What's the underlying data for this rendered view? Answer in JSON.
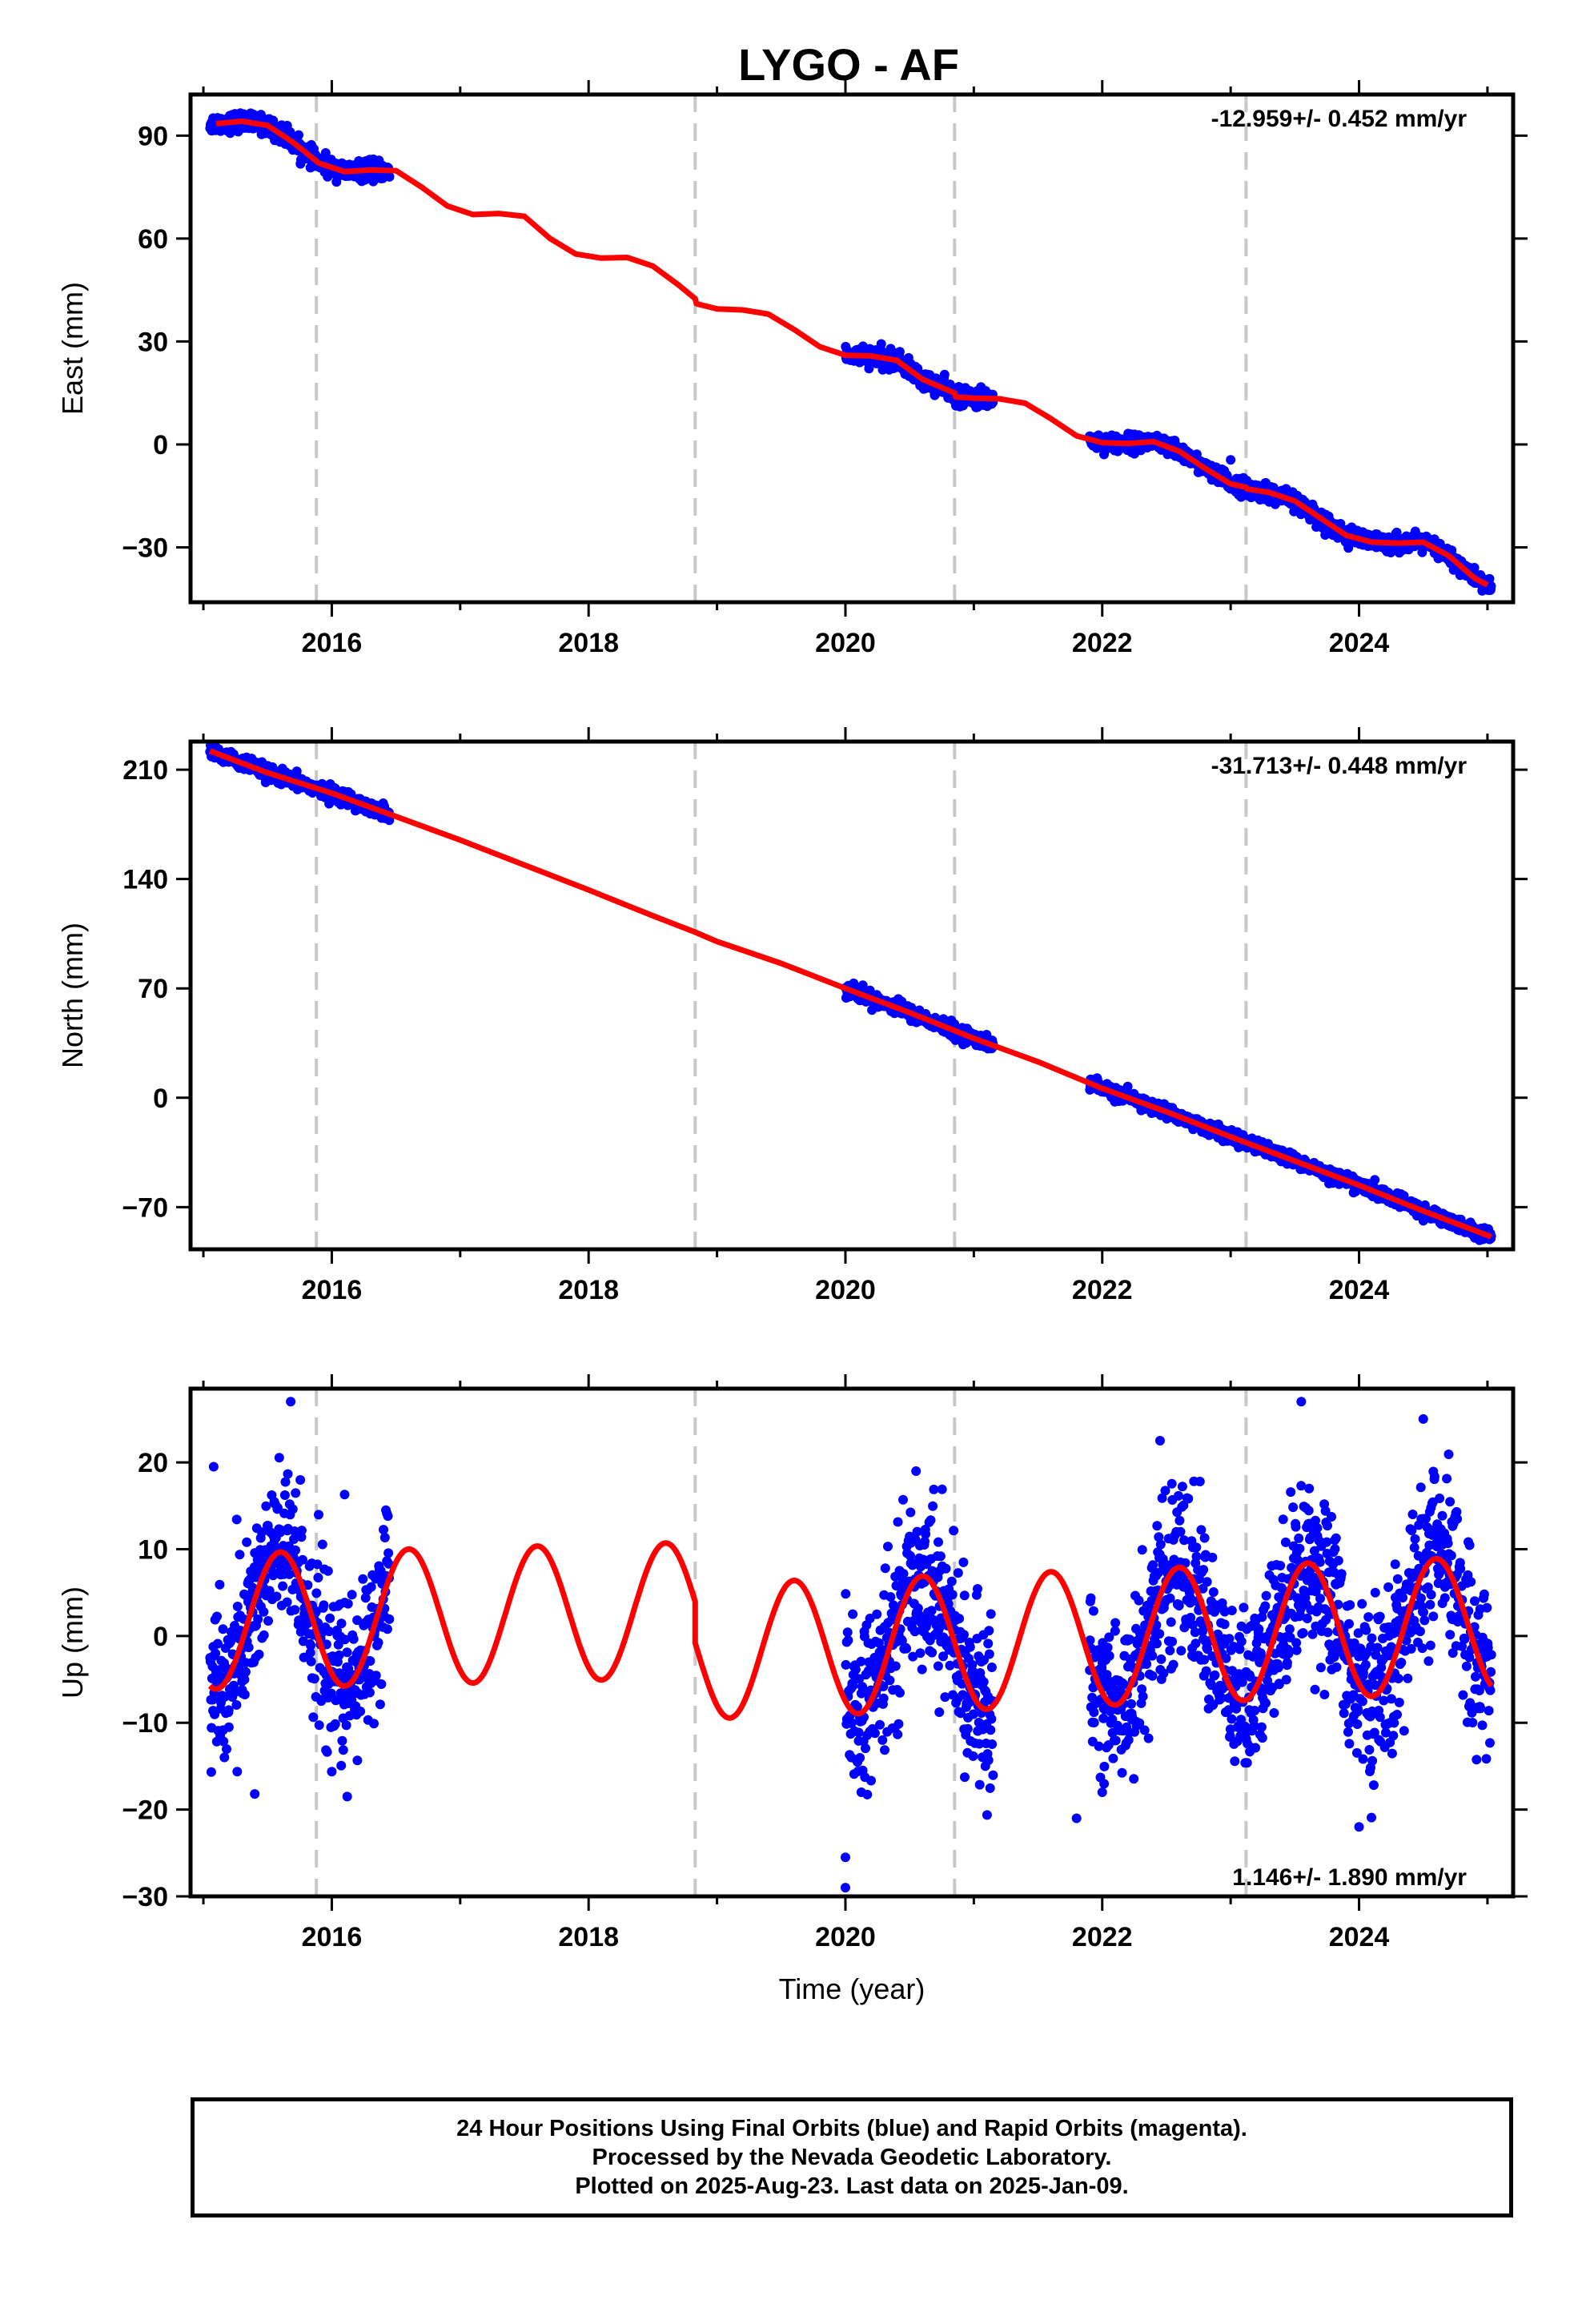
{
  "title": "LYGO - AF",
  "chart_data": [
    {
      "type": "scatter",
      "name": "east",
      "ylabel": "East (mm)",
      "xlabel": "",
      "rate_label": "-12.959+/- 0.452 mm/yr",
      "xlim": [
        2014.9,
        2025.2
      ],
      "ylim": [
        -46,
        102
      ],
      "xticks": [
        2016,
        2018,
        2020,
        2022,
        2024
      ],
      "yticks": [
        90,
        60,
        30,
        0,
        -30
      ],
      "yticklabels": [
        "90",
        "60",
        "30",
        "0",
        "−30"
      ],
      "xticklabels": [
        "2016",
        "2018",
        "2020",
        "2022",
        "2024"
      ],
      "steps": [
        2015.88,
        2018.83,
        2020.85,
        2023.12
      ],
      "fit_curve": {
        "x": [
          2015.1,
          2015.3,
          2015.5,
          2015.7,
          2015.9,
          2016.1,
          2016.3,
          2016.5,
          2016.7,
          2016.9,
          2017.1,
          2017.3,
          2017.5,
          2017.7,
          2017.9,
          2018.1,
          2018.3,
          2018.5,
          2018.7,
          2018.83,
          2018.84,
          2019.0,
          2019.2,
          2019.4,
          2019.6,
          2019.8,
          2020.0,
          2020.2,
          2020.4,
          2020.6,
          2020.85,
          2020.86,
          2021.0,
          2021.2,
          2021.4,
          2021.6,
          2021.8,
          2022.0,
          2022.2,
          2022.4,
          2022.6,
          2022.8,
          2023.0,
          2023.12,
          2023.13,
          2023.3,
          2023.5,
          2023.7,
          2023.9,
          2024.1,
          2024.3,
          2024.5,
          2024.7,
          2024.9,
          2025.0
        ],
        "y": [
          93.5,
          94.2,
          93.0,
          88.0,
          82.0,
          79.5,
          80.0,
          79.8,
          75.0,
          69.5,
          67.0,
          67.3,
          66.5,
          60.0,
          55.5,
          54.3,
          54.5,
          52.0,
          46.5,
          42.5,
          41.0,
          39.5,
          39.2,
          38.0,
          33.5,
          28.5,
          26.0,
          25.8,
          24.5,
          19.0,
          15.0,
          13.8,
          13.5,
          13.3,
          12.0,
          7.5,
          2.5,
          0.5,
          0.3,
          0.8,
          -2.0,
          -7.0,
          -11.5,
          -12.5,
          -13.0,
          -14.0,
          -16.5,
          -21.5,
          -26.5,
          -28.5,
          -28.8,
          -28.5,
          -32.5,
          -39.0,
          -41.0
        ]
      },
      "data_segments": [
        {
          "x0": 2015.05,
          "x1": 2016.45,
          "noise": 1.3
        },
        {
          "x0": 2020.0,
          "x1": 2021.15,
          "noise": 1.3
        },
        {
          "x0": 2021.9,
          "x1": 2025.03,
          "noise": 1.2
        }
      ],
      "outliers": [
        {
          "x": 2023.0,
          "y": -4.5
        }
      ]
    },
    {
      "type": "scatter",
      "name": "north",
      "ylabel": "North (mm)",
      "xlabel": "",
      "rate_label": "-31.713+/- 0.448 mm/yr",
      "xlim": [
        2014.9,
        2025.2
      ],
      "ylim": [
        -97,
        228
      ],
      "xticks": [
        2016,
        2018,
        2020,
        2022,
        2024
      ],
      "yticks": [
        210,
        140,
        70,
        0,
        -70
      ],
      "yticklabels": [
        "210",
        "140",
        "70",
        "0",
        "−70"
      ],
      "xticklabels": [
        "2016",
        "2018",
        "2020",
        "2022",
        "2024"
      ],
      "steps": [
        2015.88,
        2018.83,
        2020.85,
        2023.12
      ],
      "fit_curve": {
        "x": [
          2015.05,
          2015.5,
          2016.0,
          2016.5,
          2017.0,
          2017.5,
          2018.0,
          2018.5,
          2018.83,
          2019.0,
          2019.5,
          2020.0,
          2020.5,
          2021.0,
          2021.5,
          2022.0,
          2022.5,
          2023.0,
          2023.5,
          2024.0,
          2024.5,
          2025.03
        ],
        "y": [
          222.0,
          208.0,
          195.0,
          180.0,
          165.0,
          149.0,
          133.0,
          116.5,
          106.0,
          100.0,
          86.0,
          70.0,
          54.5,
          38.0,
          23.0,
          6.0,
          -9.0,
          -25.0,
          -40.5,
          -56.0,
          -72.5,
          -89.0
        ]
      },
      "data_segments": [
        {
          "x0": 2015.05,
          "x1": 2016.45,
          "noise": 2.2
        },
        {
          "x0": 2020.0,
          "x1": 2021.15,
          "noise": 2.2
        },
        {
          "x0": 2021.9,
          "x1": 2025.03,
          "noise": 2.0
        }
      ],
      "outliers": []
    },
    {
      "type": "scatter",
      "name": "up",
      "ylabel": "Up (mm)",
      "xlabel": "Time (year)",
      "rate_label": "1.146+/- 1.890 mm/yr",
      "xlim": [
        2014.9,
        2025.2
      ],
      "ylim": [
        -30,
        28.5
      ],
      "xticks": [
        2016,
        2018,
        2020,
        2022,
        2024
      ],
      "yticks": [
        20,
        10,
        0,
        -10,
        -20,
        -30
      ],
      "yticklabels": [
        "20",
        "10",
        "0",
        "−10",
        "−20",
        "−30"
      ],
      "xticklabels": [
        "2016",
        "2018",
        "2020",
        "2022",
        "2024"
      ],
      "steps": [
        2015.88,
        2018.83,
        2020.85,
        2023.12
      ],
      "fit_curve": {
        "model": "seasonal",
        "t0": 2015.6,
        "amplitude": 7.8,
        "segments": [
          {
            "x0": 2015.05,
            "x1": 2018.83,
            "offset": 3.4,
            "trend": 0.35
          },
          {
            "x0": 2018.83,
            "x1": 2025.03,
            "offset": -1.2,
            "trend": 0.5
          }
        ]
      },
      "data_segments": [
        {
          "x0": 2015.05,
          "x1": 2016.45,
          "noise": 4.8
        },
        {
          "x0": 2020.0,
          "x1": 2021.15,
          "noise": 4.8
        },
        {
          "x0": 2021.9,
          "x1": 2025.03,
          "noise": 4.8
        }
      ],
      "outliers": [
        {
          "x": 2015.08,
          "y": 19.5
        },
        {
          "x": 2015.4,
          "y": -18.2
        },
        {
          "x": 2015.68,
          "y": 27.0
        },
        {
          "x": 2016.1,
          "y": 16.3
        },
        {
          "x": 2016.12,
          "y": -18.5
        },
        {
          "x": 2020.0,
          "y": -25.5
        },
        {
          "x": 2020.0,
          "y": -29.0
        },
        {
          "x": 2020.55,
          "y": 19.0
        },
        {
          "x": 2022.45,
          "y": 22.5
        },
        {
          "x": 2023.55,
          "y": 27.0
        },
        {
          "x": 2024.0,
          "y": -22.0
        },
        {
          "x": 2024.5,
          "y": 25.0
        },
        {
          "x": 2021.8,
          "y": -21.0
        },
        {
          "x": 2022.0,
          "y": -18.0
        }
      ]
    }
  ],
  "footer": {
    "line1": "24 Hour Positions Using Final Orbits (blue) and Rapid Orbits (magenta).",
    "line2": "Processed by the Nevada Geodetic Laboratory.",
    "line3": "Plotted on 2025-Aug-23. Last data on 2025-Jan-09."
  },
  "colors": {
    "data": "#0000ff",
    "fit": "#ff0000",
    "steps": "#c8c8c8",
    "frame": "#000000"
  }
}
